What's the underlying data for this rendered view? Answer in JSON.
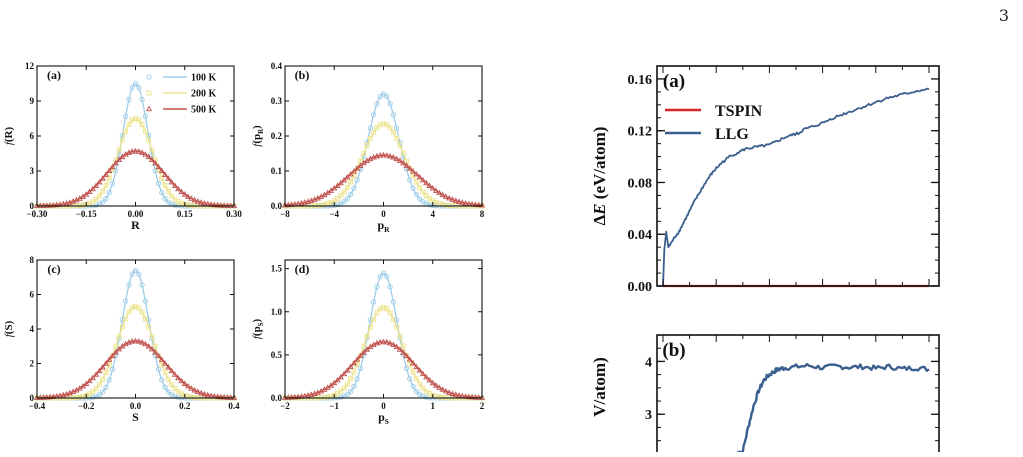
{
  "page_number": "3",
  "colors": {
    "T100": "#9ecde8",
    "T200": "#ece48e",
    "T500": "#c0504d",
    "tspin": "#d62728",
    "llg": "#3b5f8f"
  },
  "chart_data": [
    {
      "id": "left-a",
      "type": "line",
      "panel_label": "(a)",
      "xlabel": "R",
      "ylabel": "f(R)",
      "xlim": [
        -0.3,
        0.3
      ],
      "ylim": [
        0,
        12
      ],
      "xticks": [
        -0.3,
        -0.15,
        0,
        0.15,
        0.3
      ],
      "xtick_labels": [
        "−0.30",
        "−0.15",
        "0.00",
        "0.15",
        "0.30"
      ],
      "yticks": [
        0,
        3,
        6,
        9,
        12
      ],
      "ytick_labels": [
        "0",
        "3",
        "6",
        "9",
        "12"
      ],
      "legend": {
        "placement": "top-right"
      },
      "series": [
        {
          "name": "100 K",
          "color_key": "T100",
          "marker": "circle",
          "gauss": {
            "peak": 10.5,
            "sigma": 0.038
          }
        },
        {
          "name": "200 K",
          "color_key": "T200",
          "marker": "square",
          "gauss": {
            "peak": 7.5,
            "sigma": 0.053
          }
        },
        {
          "name": "500 K",
          "color_key": "T500",
          "marker": "triangle",
          "gauss": {
            "peak": 4.7,
            "sigma": 0.085
          }
        }
      ]
    },
    {
      "id": "left-b",
      "type": "line",
      "panel_label": "(b)",
      "xlabel": "pR",
      "ylabel": "f(pR)",
      "xlim": [
        -8,
        8
      ],
      "ylim": [
        0,
        0.4
      ],
      "xticks": [
        -8,
        -4,
        0,
        4,
        8
      ],
      "xtick_labels": [
        "−8",
        "−4",
        "0",
        "4",
        "8"
      ],
      "yticks": [
        0,
        0.1,
        0.2,
        0.3,
        0.4
      ],
      "ytick_labels": [
        "0.0",
        "0.1",
        "0.2",
        "0.3",
        "0.4"
      ],
      "series": [
        {
          "name": "100 K",
          "color_key": "T100",
          "marker": "circle",
          "gauss": {
            "peak": 0.32,
            "sigma": 1.25
          }
        },
        {
          "name": "200 K",
          "color_key": "T200",
          "marker": "square",
          "gauss": {
            "peak": 0.235,
            "sigma": 1.7
          }
        },
        {
          "name": "500 K",
          "color_key": "T500",
          "marker": "triangle",
          "gauss": {
            "peak": 0.145,
            "sigma": 2.75
          }
        }
      ]
    },
    {
      "id": "left-c",
      "type": "line",
      "panel_label": "(c)",
      "xlabel": "S",
      "ylabel": "f(S)",
      "xlim": [
        -0.4,
        0.4
      ],
      "ylim": [
        0,
        8
      ],
      "xticks": [
        -0.4,
        -0.2,
        0,
        0.2,
        0.4
      ],
      "xtick_labels": [
        "−0.4",
        "−0.2",
        "0.0",
        "0.2",
        "0.4"
      ],
      "yticks": [
        0,
        2,
        4,
        6,
        8
      ],
      "ytick_labels": [
        "0",
        "2",
        "4",
        "6",
        "8"
      ],
      "series": [
        {
          "name": "100 K",
          "color_key": "T100",
          "marker": "circle",
          "gauss": {
            "peak": 7.4,
            "sigma": 0.054
          }
        },
        {
          "name": "200 K",
          "color_key": "T200",
          "marker": "square",
          "gauss": {
            "peak": 5.3,
            "sigma": 0.075
          }
        },
        {
          "name": "500 K",
          "color_key": "T500",
          "marker": "triangle",
          "gauss": {
            "peak": 3.3,
            "sigma": 0.12
          }
        }
      ]
    },
    {
      "id": "left-d",
      "type": "line",
      "panel_label": "(d)",
      "xlabel": "pS",
      "ylabel": "f(pS)",
      "xlim": [
        -2,
        2
      ],
      "ylim": [
        0,
        1.6
      ],
      "xticks": [
        -2,
        -1,
        0,
        1,
        2
      ],
      "xtick_labels": [
        "−2",
        "−1",
        "0",
        "1",
        "2"
      ],
      "yticks": [
        0,
        0.5,
        1,
        1.5
      ],
      "ytick_labels": [
        "0.0",
        "0.5",
        "1.0",
        "1.5"
      ],
      "series": [
        {
          "name": "100 K",
          "color_key": "T100",
          "marker": "circle",
          "gauss": {
            "peak": 1.45,
            "sigma": 0.275
          }
        },
        {
          "name": "200 K",
          "color_key": "T200",
          "marker": "square",
          "gauss": {
            "peak": 1.05,
            "sigma": 0.38
          }
        },
        {
          "name": "500 K",
          "color_key": "T500",
          "marker": "triangle",
          "gauss": {
            "peak": 0.65,
            "sigma": 0.615
          }
        }
      ]
    },
    {
      "id": "right-a",
      "type": "line",
      "panel_label": "(a)",
      "xlabel": "",
      "ylabel": "ΔE (eV/atom)",
      "xlim": [
        0,
        1
      ],
      "ylim": [
        0,
        0.17
      ],
      "yticks": [
        0,
        0.04,
        0.08,
        0.12,
        0.16
      ],
      "ytick_labels": [
        "0.00",
        "0.04",
        "0.08",
        "0.12",
        "0.16"
      ],
      "legend": {
        "placement": "top-left"
      },
      "series": [
        {
          "name": "TSPIN",
          "color_key": "tspin",
          "x": [
            0,
            1
          ],
          "y": [
            0,
            0
          ]
        },
        {
          "name": "LLG",
          "color_key": "llg",
          "x": [
            0,
            0.005,
            0.012,
            0.02,
            0.03,
            0.045,
            0.06,
            0.08,
            0.1,
            0.12,
            0.14,
            0.16,
            0.18,
            0.2,
            0.22,
            0.25,
            0.28,
            0.31,
            0.34,
            0.37,
            0.4,
            0.43,
            0.46,
            0.49,
            0.51,
            0.53,
            0.56,
            0.6,
            0.64,
            0.68,
            0.72,
            0.76,
            0.8,
            0.84,
            0.88,
            0.92,
            0.96,
            1.0
          ],
          "y": [
            0,
            0.028,
            0.042,
            0.03,
            0.033,
            0.038,
            0.042,
            0.05,
            0.058,
            0.066,
            0.073,
            0.08,
            0.086,
            0.091,
            0.095,
            0.1,
            0.103,
            0.106,
            0.107,
            0.108,
            0.109,
            0.112,
            0.115,
            0.117,
            0.118,
            0.121,
            0.123,
            0.126,
            0.13,
            0.133,
            0.136,
            0.139,
            0.142,
            0.145,
            0.147,
            0.149,
            0.151,
            0.152
          ]
        }
      ]
    },
    {
      "id": "right-b",
      "type": "line",
      "panel_label": "(b)",
      "xlabel": "",
      "ylabel": "V/atom)",
      "xlim": [
        0,
        1
      ],
      "ylim": [
        1.85,
        4.5
      ],
      "yticks": [
        2,
        3,
        4
      ],
      "ytick_labels": [
        "",
        "3",
        "4"
      ],
      "series": [
        {
          "name": "",
          "color_key": "llg",
          "x": [
            0.28,
            0.3,
            0.32,
            0.34,
            0.36,
            0.38,
            0.4,
            0.42,
            0.44,
            0.46,
            0.5,
            0.55,
            0.6,
            0.65,
            0.7,
            0.75,
            0.8,
            0.85,
            0.9,
            0.95,
            1.0
          ],
          "y": [
            1.9,
            2.3,
            2.75,
            3.15,
            3.45,
            3.65,
            3.75,
            3.82,
            3.86,
            3.88,
            3.9,
            3.92,
            3.88,
            3.91,
            3.89,
            3.9,
            3.87,
            3.9,
            3.86,
            3.88,
            3.85
          ]
        }
      ]
    }
  ]
}
